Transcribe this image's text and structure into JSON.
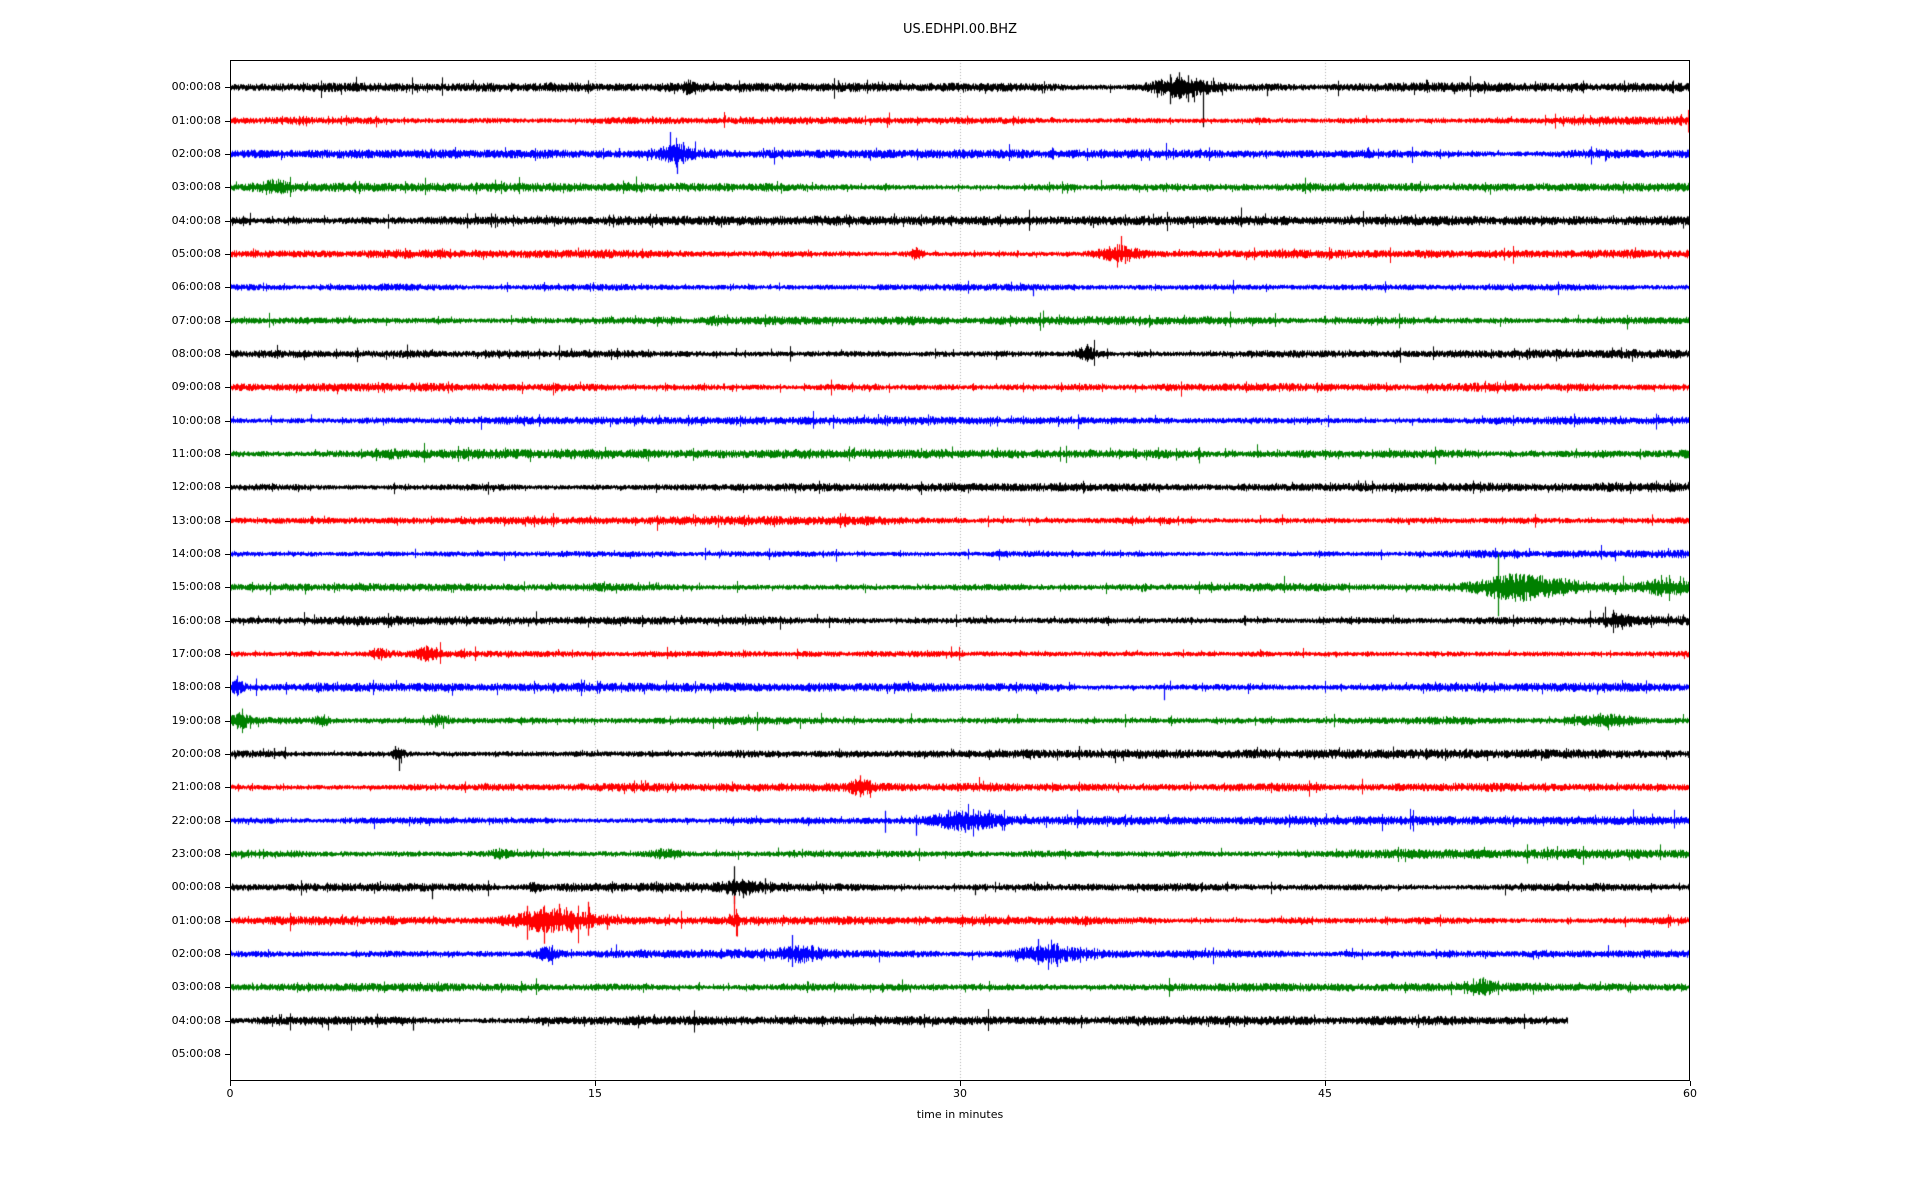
{
  "chart_data": {
    "type": "line",
    "subtype": "helicorder-dayplot",
    "title": "US.EDHPI.00.BHZ",
    "xlabel": "time in minutes",
    "x_range_minutes": [
      0,
      60
    ],
    "x_ticks": [
      0,
      15,
      30,
      45,
      60
    ],
    "x_gridlines": [
      15,
      30,
      45
    ],
    "grid_on": true,
    "grid_color": "#b0b0b0",
    "background_color": "#ffffff",
    "trace_colors": {
      "k": "#000000",
      "r": "#ff0000",
      "b": "#0000ff",
      "g": "#008000"
    },
    "rows": [
      {
        "label": "00:00:08",
        "color": "k",
        "amp": 3.2,
        "events": [
          {
            "t": 39.1,
            "w": 0.9,
            "a": 8
          },
          {
            "t": 18.8,
            "w": 0.15,
            "a": 3
          }
        ],
        "spikes": [
          {
            "t": 25.0,
            "u": 7,
            "d": 5
          },
          {
            "t": 38.65,
            "u": 13,
            "d": 17
          },
          {
            "t": 39.0,
            "u": 15,
            "d": 12
          },
          {
            "t": 39.35,
            "u": 12,
            "d": 15
          },
          {
            "t": 40.0,
            "u": 7,
            "d": 40
          },
          {
            "t": 42.6,
            "u": 3,
            "d": 9
          },
          {
            "t": 50.3,
            "u": 3,
            "d": 7
          }
        ]
      },
      {
        "label": "01:00:08",
        "color": "r",
        "amp": 3.0,
        "events": [],
        "spikes": []
      },
      {
        "label": "02:00:08",
        "color": "b",
        "amp": 3.0,
        "events": [
          {
            "t": 18.3,
            "w": 0.45,
            "a": 6
          }
        ],
        "spikes": [
          {
            "t": 16.0,
            "u": 6,
            "d": 4
          },
          {
            "t": 18.1,
            "u": 22,
            "d": 8
          },
          {
            "t": 18.35,
            "u": 10,
            "d": 20
          },
          {
            "t": 18.6,
            "u": 12,
            "d": 10
          }
        ]
      },
      {
        "label": "03:00:08",
        "color": "g",
        "amp": 3.0,
        "events": [
          {
            "t": 1.8,
            "w": 0.4,
            "a": 4
          }
        ],
        "spikes": []
      },
      {
        "label": "04:00:08",
        "color": "k",
        "amp": 3.2,
        "events": [],
        "spikes": []
      },
      {
        "label": "05:00:08",
        "color": "r",
        "amp": 3.0,
        "events": [
          {
            "t": 28.2,
            "w": 0.2,
            "a": 4
          },
          {
            "t": 36.5,
            "w": 0.6,
            "a": 6
          }
        ],
        "spikes": [
          {
            "t": 28.2,
            "u": 7,
            "d": 5
          },
          {
            "t": 36.6,
            "u": 18,
            "d": 8
          },
          {
            "t": 36.8,
            "u": 8,
            "d": 10
          }
        ]
      },
      {
        "label": "06:00:08",
        "color": "b",
        "amp": 3.0,
        "events": [],
        "spikes": [
          {
            "t": 33.0,
            "u": 3,
            "d": 9
          }
        ]
      },
      {
        "label": "07:00:08",
        "color": "g",
        "amp": 3.0,
        "events": [
          {
            "t": 20.0,
            "w": 0.3,
            "a": 2
          }
        ],
        "spikes": []
      },
      {
        "label": "08:00:08",
        "color": "k",
        "amp": 3.2,
        "events": [
          {
            "t": 35.2,
            "w": 0.3,
            "a": 5
          }
        ],
        "spikes": [
          {
            "t": 35.2,
            "u": 10,
            "d": 7
          }
        ]
      },
      {
        "label": "09:00:08",
        "color": "r",
        "amp": 3.0,
        "events": [],
        "spikes": []
      },
      {
        "label": "10:00:08",
        "color": "b",
        "amp": 2.8,
        "events": [],
        "spikes": []
      },
      {
        "label": "11:00:08",
        "color": "g",
        "amp": 3.4,
        "events": [
          {
            "t": 6.5,
            "w": 0.5,
            "a": 2
          }
        ],
        "spikes": []
      },
      {
        "label": "12:00:08",
        "color": "k",
        "amp": 3.0,
        "events": [],
        "spikes": [
          {
            "t": 23.2,
            "u": 3,
            "d": 6
          }
        ]
      },
      {
        "label": "13:00:08",
        "color": "r",
        "amp": 3.0,
        "events": [],
        "spikes": []
      },
      {
        "label": "14:00:08",
        "color": "b",
        "amp": 2.9,
        "events": [],
        "spikes": []
      },
      {
        "label": "15:00:08",
        "color": "g",
        "amp": 3.2,
        "events": [
          {
            "t": 52.6,
            "w": 1.0,
            "a": 8
          },
          {
            "t": 54.3,
            "w": 1.2,
            "a": 4
          },
          {
            "t": 58.9,
            "w": 0.7,
            "a": 4
          }
        ],
        "spikes": [
          {
            "t": 52.1,
            "u": 33,
            "d": 29
          },
          {
            "t": 52.4,
            "u": 12,
            "d": 10
          },
          {
            "t": 59.0,
            "u": 10,
            "d": 6
          }
        ]
      },
      {
        "label": "16:00:08",
        "color": "k",
        "amp": 3.1,
        "events": [
          {
            "t": 57.0,
            "w": 0.4,
            "a": 4
          }
        ],
        "spikes": [
          {
            "t": 41.7,
            "u": 5,
            "d": 5
          },
          {
            "t": 44.9,
            "u": 4,
            "d": 4
          },
          {
            "t": 56.8,
            "u": 7,
            "d": 4
          },
          {
            "t": 57.2,
            "u": 6,
            "d": 4
          }
        ]
      },
      {
        "label": "17:00:08",
        "color": "r",
        "amp": 3.0,
        "events": [
          {
            "t": 6.1,
            "w": 0.25,
            "a": 4
          },
          {
            "t": 8.1,
            "w": 0.3,
            "a": 5
          }
        ],
        "spikes": [
          {
            "t": 6.1,
            "u": 6,
            "d": 5
          },
          {
            "t": 8.1,
            "u": 8,
            "d": 6
          }
        ]
      },
      {
        "label": "18:00:08",
        "color": "b",
        "amp": 3.0,
        "events": [
          {
            "t": 0.3,
            "w": 0.2,
            "a": 4
          }
        ],
        "spikes": [
          {
            "t": 0.25,
            "u": 8,
            "d": 6
          },
          {
            "t": 38.4,
            "u": 4,
            "d": 13
          }
        ]
      },
      {
        "label": "19:00:08",
        "color": "g",
        "amp": 3.3,
        "events": [
          {
            "t": 0.4,
            "w": 0.3,
            "a": 5
          },
          {
            "t": 3.8,
            "w": 0.2,
            "a": 3
          },
          {
            "t": 8.5,
            "w": 0.25,
            "a": 4
          },
          {
            "t": 56.5,
            "w": 0.9,
            "a": 4
          }
        ],
        "spikes": [
          {
            "t": 0.5,
            "u": 8,
            "d": 6
          },
          {
            "t": 56.3,
            "u": 8,
            "d": 6
          }
        ]
      },
      {
        "label": "20:00:08",
        "color": "k",
        "amp": 3.1,
        "events": [
          {
            "t": 6.9,
            "w": 0.2,
            "a": 4
          }
        ],
        "spikes": [
          {
            "t": 1.8,
            "u": 6,
            "d": 5
          },
          {
            "t": 6.8,
            "u": 8,
            "d": 5
          },
          {
            "t": 6.95,
            "u": 4,
            "d": 17
          },
          {
            "t": 34.9,
            "u": 8,
            "d": 6
          }
        ]
      },
      {
        "label": "21:00:08",
        "color": "r",
        "amp": 3.0,
        "events": [
          {
            "t": 25.9,
            "w": 0.3,
            "a": 5
          }
        ],
        "spikes": [
          {
            "t": 25.9,
            "u": 12,
            "d": 10
          }
        ]
      },
      {
        "label": "22:00:08",
        "color": "b",
        "amp": 3.0,
        "events": [
          {
            "t": 30.3,
            "w": 1.1,
            "a": 7
          }
        ],
        "spikes": [
          {
            "t": 26.9,
            "u": 10,
            "d": 12
          },
          {
            "t": 28.2,
            "u": 6,
            "d": 15
          },
          {
            "t": 29.5,
            "u": 11,
            "d": 9
          },
          {
            "t": 30.2,
            "u": 9,
            "d": 12
          },
          {
            "t": 31.2,
            "u": 11,
            "d": 8
          }
        ]
      },
      {
        "label": "23:00:08",
        "color": "g",
        "amp": 3.3,
        "events": [
          {
            "t": 11.1,
            "w": 0.3,
            "a": 3
          },
          {
            "t": 17.9,
            "w": 0.4,
            "a": 3
          }
        ],
        "spikes": []
      },
      {
        "label": "00:00:08",
        "color": "k",
        "amp": 3.1,
        "events": [
          {
            "t": 21.0,
            "w": 0.6,
            "a": 4
          },
          {
            "t": 12.5,
            "w": 0.2,
            "a": 3
          }
        ],
        "spikes": [
          {
            "t": 8.3,
            "u": 4,
            "d": 12
          },
          {
            "t": 17.5,
            "u": 6,
            "d": 5
          },
          {
            "t": 20.7,
            "u": 21,
            "d": 17
          },
          {
            "t": 21.1,
            "u": 5,
            "d": 11
          },
          {
            "t": 22.0,
            "u": 9,
            "d": 7
          },
          {
            "t": 30.6,
            "u": 3,
            "d": 8
          }
        ]
      },
      {
        "label": "01:00:08",
        "color": "r",
        "amp": 3.0,
        "events": [
          {
            "t": 13.3,
            "w": 1.2,
            "a": 8
          },
          {
            "t": 20.7,
            "w": 0.15,
            "a": 3
          }
        ],
        "spikes": [
          {
            "t": 12.2,
            "u": 15,
            "d": 19
          },
          {
            "t": 12.9,
            "u": 11,
            "d": 23
          },
          {
            "t": 13.5,
            "u": 17,
            "d": 10
          },
          {
            "t": 14.0,
            "u": 10,
            "d": 12
          },
          {
            "t": 14.7,
            "u": 19,
            "d": 15
          },
          {
            "t": 15.5,
            "u": 7,
            "d": 9
          },
          {
            "t": 20.7,
            "u": 25,
            "d": 6
          }
        ]
      },
      {
        "label": "02:00:08",
        "color": "b",
        "amp": 3.0,
        "events": [
          {
            "t": 13.0,
            "w": 0.3,
            "a": 4
          },
          {
            "t": 23.4,
            "w": 0.7,
            "a": 6
          },
          {
            "t": 33.6,
            "w": 0.8,
            "a": 6
          }
        ],
        "spikes": [
          {
            "t": 23.1,
            "u": 19,
            "d": 13
          },
          {
            "t": 23.9,
            "u": 9,
            "d": 8
          },
          {
            "t": 33.2,
            "u": 15,
            "d": 11
          },
          {
            "t": 34.0,
            "u": 11,
            "d": 13
          }
        ]
      },
      {
        "label": "03:00:08",
        "color": "g",
        "amp": 3.0,
        "events": [
          {
            "t": 51.5,
            "w": 0.3,
            "a": 5
          }
        ],
        "spikes": [
          {
            "t": 51.5,
            "u": 10,
            "d": 7
          }
        ]
      },
      {
        "label": "04:00:08",
        "color": "k",
        "amp": 3.1,
        "end": 55,
        "events": [],
        "spikes": [
          {
            "t": 7.5,
            "u": 4,
            "d": 10
          }
        ]
      },
      {
        "label": "05:00:08",
        "color": "r",
        "trace": false,
        "events": [],
        "spikes": []
      }
    ]
  }
}
